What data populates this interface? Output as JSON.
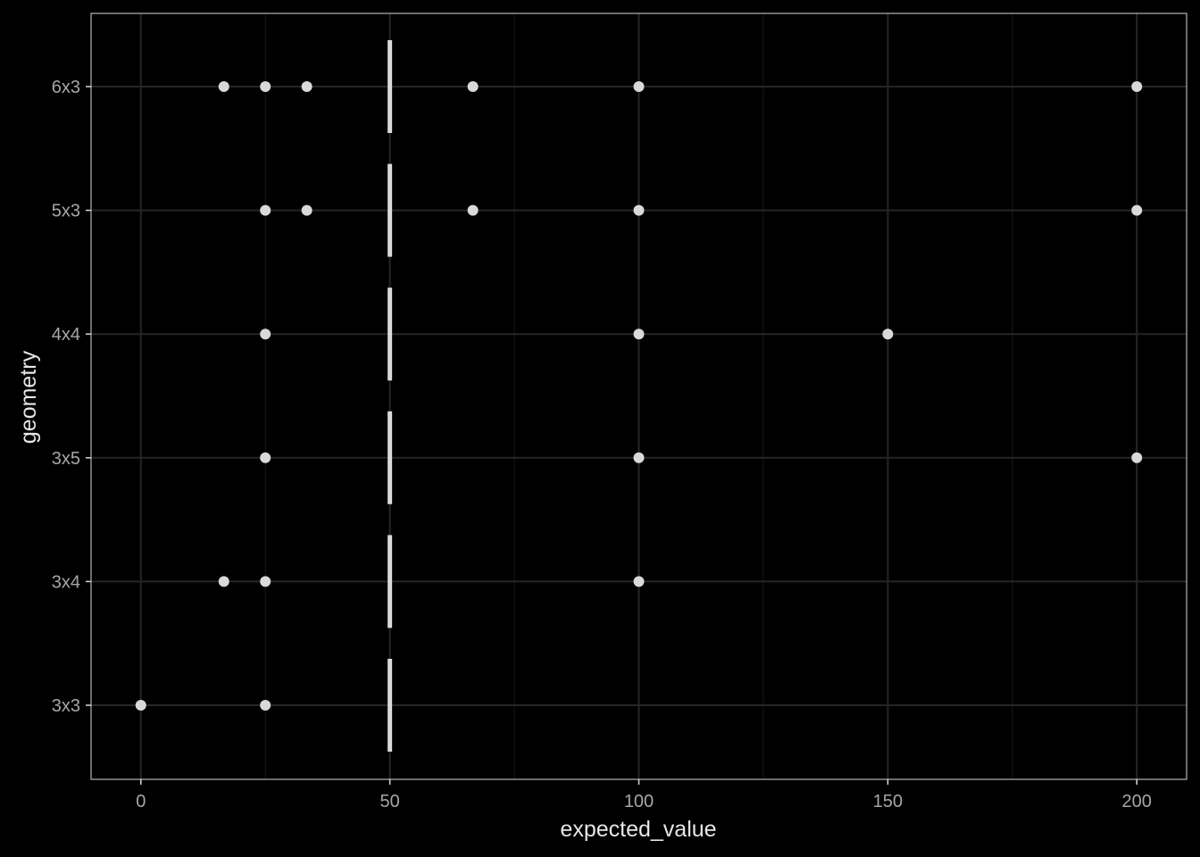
{
  "chart_data": {
    "type": "scatter",
    "title": "",
    "xlabel": "expected_value",
    "ylabel": "geometry",
    "xlim": [
      -10,
      210
    ],
    "xticks": [
      0,
      50,
      100,
      150,
      200
    ],
    "categories": [
      "3x3",
      "3x4",
      "3x5",
      "4x4",
      "5x3",
      "6x3"
    ],
    "grid": true,
    "reference_line": {
      "x": 50,
      "style": "vertical segment per category"
    },
    "series": [
      {
        "points": [
          {
            "geometry": "6x3",
            "values": [
              16.67,
              25,
              33.33,
              66.67,
              100,
              200
            ]
          },
          {
            "geometry": "5x3",
            "values": [
              25,
              33.33,
              66.67,
              100,
              200
            ]
          },
          {
            "geometry": "4x4",
            "values": [
              25,
              100,
              150
            ]
          },
          {
            "geometry": "3x5",
            "values": [
              25,
              100,
              200
            ]
          },
          {
            "geometry": "3x4",
            "values": [
              16.67,
              25,
              100
            ]
          },
          {
            "geometry": "3x3",
            "values": [
              0,
              25
            ]
          }
        ]
      }
    ],
    "colors": {
      "background": "#000000",
      "panel_border": "#d9d9d9",
      "grid_major": "#262626",
      "grid_minor": "#141414",
      "points": "#d9d9d9",
      "reference_line": "#d9d9d9",
      "tick_label": "#a6a6a6",
      "axis_title": "#e6e6e6"
    }
  }
}
